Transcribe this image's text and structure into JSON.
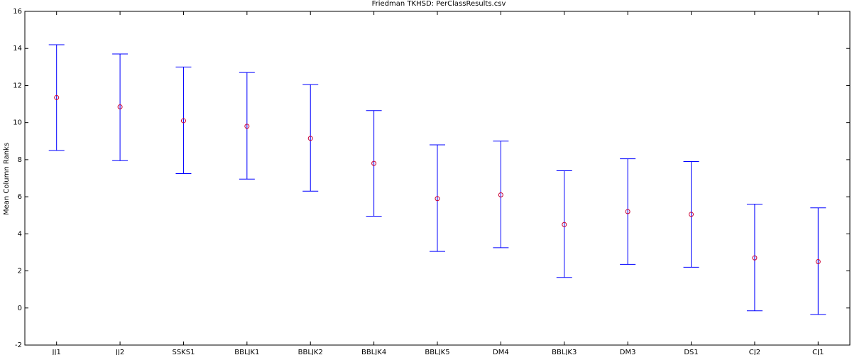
{
  "chart_data": {
    "type": "scatter",
    "title": "Friedman TKHSD: PerClassResults.csv",
    "xlabel": "",
    "ylabel": "Mean Column Ranks",
    "ylim": [
      -2,
      16
    ],
    "yticks": [
      -2,
      0,
      2,
      4,
      6,
      8,
      10,
      12,
      14,
      16
    ],
    "grid": false,
    "categories": [
      "JJ1",
      "JJ2",
      "SSKS1",
      "BBLJK1",
      "BBLJK2",
      "BBLJK4",
      "BBLJK5",
      "DM4",
      "BBLJK3",
      "DM3",
      "DS1",
      "CJ2",
      "CJ1"
    ],
    "means": [
      11.35,
      10.85,
      10.1,
      9.8,
      9.15,
      7.8,
      5.9,
      6.1,
      4.5,
      5.2,
      5.05,
      2.7,
      2.5
    ],
    "lower": [
      8.5,
      7.95,
      7.25,
      6.95,
      6.3,
      4.95,
      3.05,
      3.25,
      1.65,
      2.35,
      2.2,
      -0.15,
      -0.35
    ],
    "upper": [
      14.2,
      13.7,
      13.0,
      12.7,
      12.05,
      10.65,
      8.8,
      9.0,
      7.4,
      8.05,
      7.9,
      5.6,
      5.4
    ],
    "colors": {
      "errorbar": "#0000ff",
      "marker": "#cc0033",
      "axis": "#000000"
    }
  }
}
